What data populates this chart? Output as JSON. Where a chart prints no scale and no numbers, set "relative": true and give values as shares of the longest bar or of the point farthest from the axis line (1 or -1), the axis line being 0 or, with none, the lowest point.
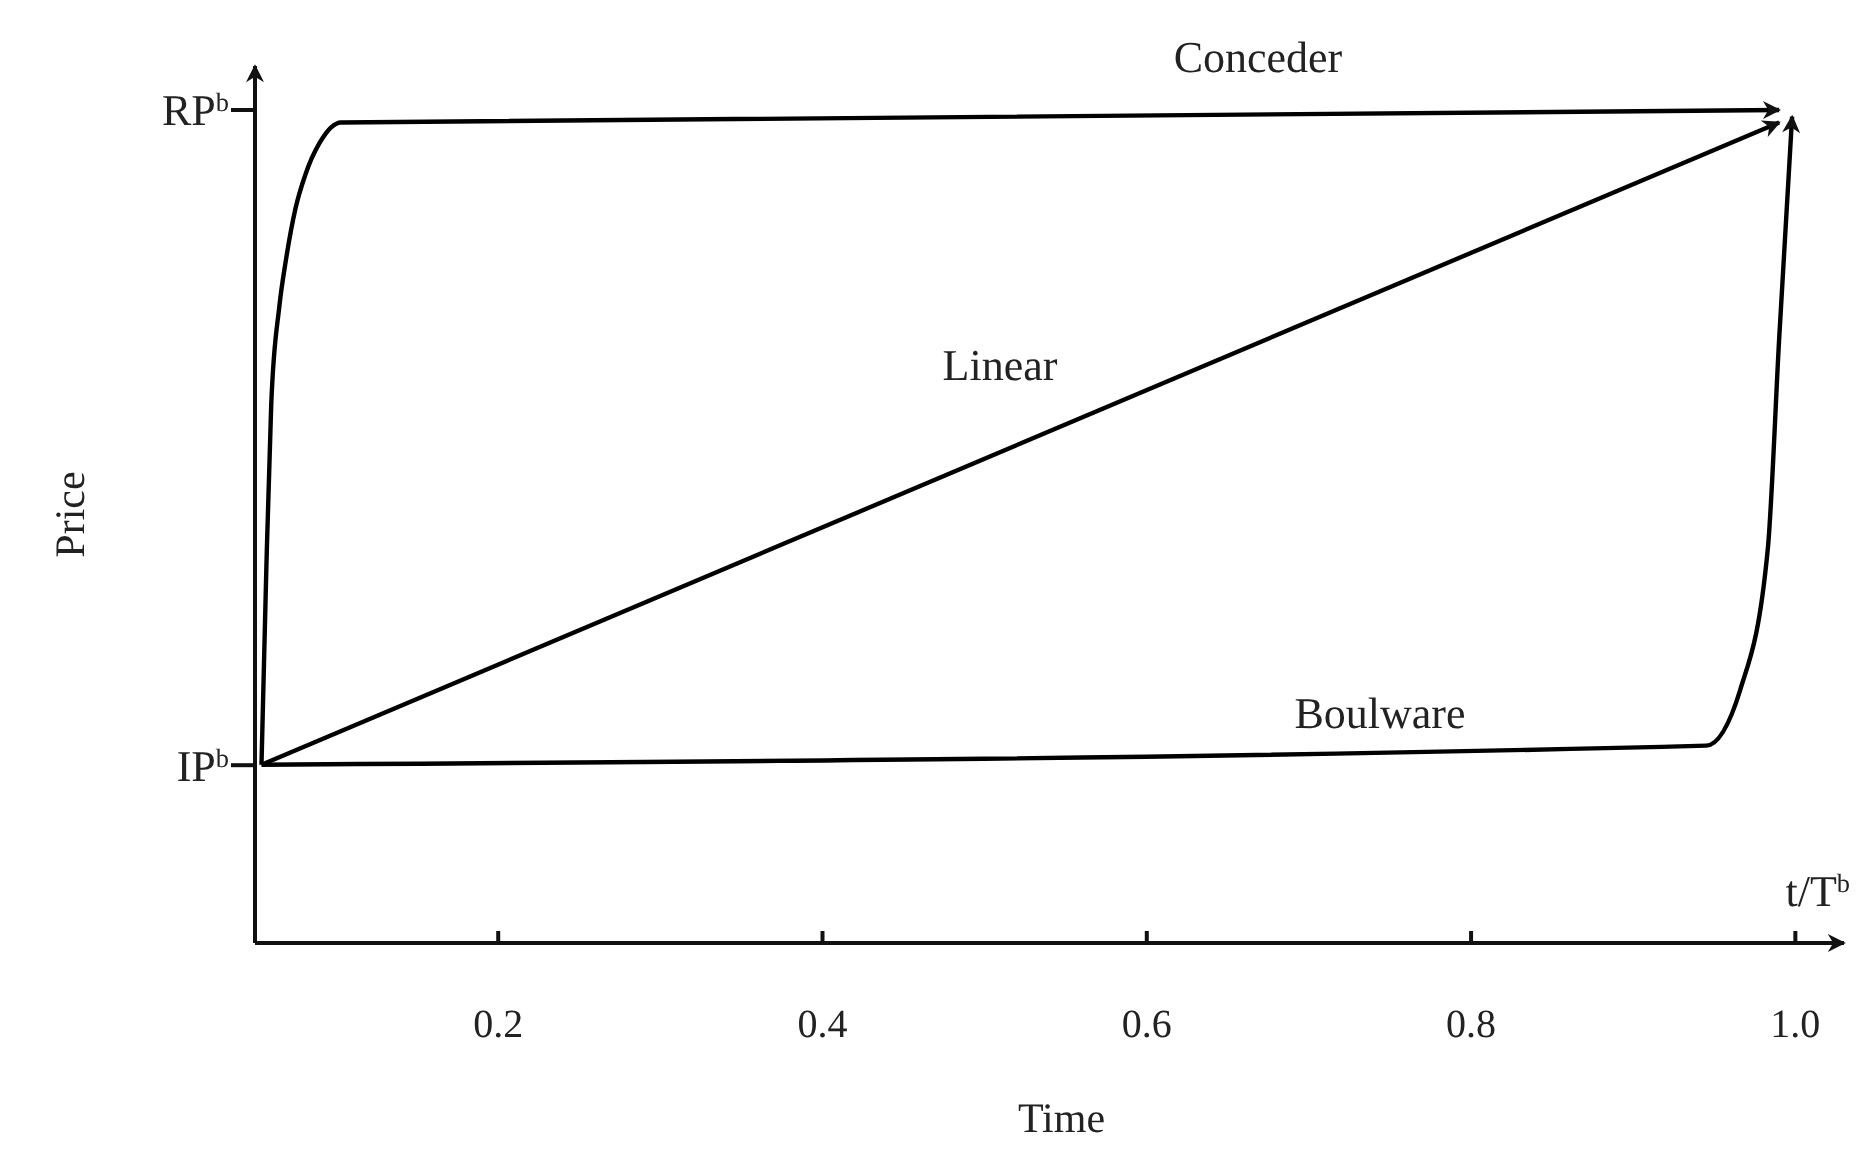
{
  "chart_data": {
    "type": "line",
    "xlabel": "Time",
    "ylabel": "Price",
    "relative": true,
    "annotations": [
      "t/T$^{b}$",
      "IP$^{b}$",
      "RP$^{b}$"
    ],
    "xlim": [
      0.05,
      1.03
    ],
    "xticks": [
      0.2,
      0.4,
      0.6,
      0.8,
      {
        "value": 1,
        "label": "1.0"
      }
    ],
    "grid": false,
    "legend": false,
    "line_style": "solid",
    "marker": "none",
    "series": [
      {
        "name": "Conceder",
        "color": "#000000",
        "x": [
          0.054,
          0.057,
          0.06,
          0.065,
          0.069,
          0.075,
          0.081,
          0.09,
          0.103,
          0.99
        ],
        "values": [
          0.214,
          0.45,
          0.646,
          0.764,
          0.819,
          0.882,
          0.922,
          0.961,
          0.985,
          1
        ]
      },
      {
        "name": "Linear",
        "color": "#000000",
        "x": [
          0.054,
          0.99
        ],
        "values": [
          0.214,
          0.985
        ]
      },
      {
        "name": "Boulware",
        "color": "#000000",
        "x": [
          0.054,
          0.945,
          0.966,
          0.983,
          0.99,
          0.998
        ],
        "values": [
          0.214,
          0.237,
          0.304,
          0.473,
          0.725,
          0.992
        ]
      }
    ]
  }
}
